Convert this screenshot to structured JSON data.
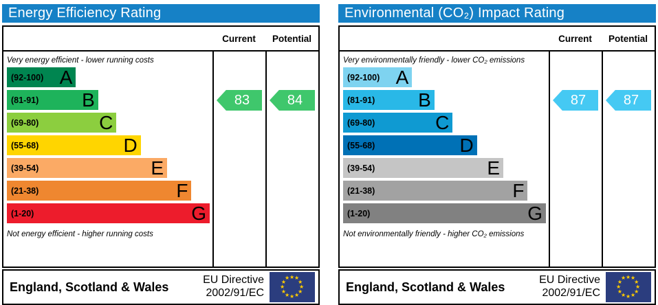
{
  "colors": {
    "header_bg": "#1681c6",
    "flag_bg": "#2b3d7e",
    "flag_star": "#ffcc00"
  },
  "panels": [
    {
      "title": "Energy Efficiency Rating",
      "columns": {
        "current": "Current",
        "potential": "Potential"
      },
      "top_note": "Very energy efficient - lower running costs",
      "bottom_note": "Not energy efficient - higher running costs",
      "bands": [
        {
          "range": "(92-100)",
          "letter": "A",
          "color": "#008550",
          "width_pct": 34
        },
        {
          "range": "(81-91)",
          "letter": "B",
          "color": "#1eb35b",
          "width_pct": 45
        },
        {
          "range": "(69-80)",
          "letter": "C",
          "color": "#8cce3f",
          "width_pct": 54
        },
        {
          "range": "(55-68)",
          "letter": "D",
          "color": "#ffd500",
          "width_pct": 66
        },
        {
          "range": "(39-54)",
          "letter": "E",
          "color": "#fbaa65",
          "width_pct": 79
        },
        {
          "range": "(21-38)",
          "letter": "F",
          "color": "#ef8730",
          "width_pct": 91
        },
        {
          "range": "(1-20)",
          "letter": "G",
          "color": "#ed1c2c",
          "width_pct": 100
        }
      ],
      "current": {
        "value": "83",
        "color": "#3fc76c"
      },
      "potential": {
        "value": "84",
        "color": "#3fc76c"
      },
      "footer": {
        "region": "England, Scotland & Wales",
        "directive_line1": "EU Directive",
        "directive_line2": "2002/91/EC"
      }
    },
    {
      "title": "Environmental (CO₂) Impact Rating",
      "columns": {
        "current": "Current",
        "potential": "Potential"
      },
      "top_note": "Very environmentally friendly - lower CO₂ emissions",
      "bottom_note": "Not environmentally friendly - higher CO₂ emissions",
      "bands": [
        {
          "range": "(92-100)",
          "letter": "A",
          "color": "#7ed3f0",
          "width_pct": 34
        },
        {
          "range": "(81-91)",
          "letter": "B",
          "color": "#29b8e7",
          "width_pct": 45
        },
        {
          "range": "(69-80)",
          "letter": "C",
          "color": "#0f9ad2",
          "width_pct": 54
        },
        {
          "range": "(55-68)",
          "letter": "D",
          "color": "#0071b6",
          "width_pct": 66
        },
        {
          "range": "(39-54)",
          "letter": "E",
          "color": "#c5c5c5",
          "width_pct": 79
        },
        {
          "range": "(21-38)",
          "letter": "F",
          "color": "#a2a2a2",
          "width_pct": 91
        },
        {
          "range": "(1-20)",
          "letter": "G",
          "color": "#818181",
          "width_pct": 100
        }
      ],
      "current": {
        "value": "87",
        "color": "#45c9f3"
      },
      "potential": {
        "value": "87",
        "color": "#45c9f3"
      },
      "footer": {
        "region": "England, Scotland & Wales",
        "directive_line1": "EU Directive",
        "directive_line2": "2002/91/EC"
      }
    }
  ],
  "chart_data": [
    {
      "type": "bar",
      "title": "Energy Efficiency Rating",
      "categories": [
        "A (92-100)",
        "B (81-91)",
        "C (69-80)",
        "D (55-68)",
        "E (39-54)",
        "F (21-38)",
        "G (1-20)"
      ],
      "values": [
        34,
        45,
        54,
        66,
        79,
        91,
        100
      ],
      "value_unit": "relative band width %",
      "current_rating": 83,
      "current_band": "B",
      "potential_rating": 84,
      "potential_band": "B",
      "xlabel": "",
      "ylabel": "",
      "annotations": [
        "Very energy efficient - lower running costs",
        "Not energy efficient - higher running costs",
        "England, Scotland & Wales",
        "EU Directive 2002/91/EC"
      ]
    },
    {
      "type": "bar",
      "title": "Environmental (CO₂) Impact Rating",
      "categories": [
        "A (92-100)",
        "B (81-91)",
        "C (69-80)",
        "D (55-68)",
        "E (39-54)",
        "F (21-38)",
        "G (1-20)"
      ],
      "values": [
        34,
        45,
        54,
        66,
        79,
        91,
        100
      ],
      "value_unit": "relative band width %",
      "current_rating": 87,
      "current_band": "B",
      "potential_rating": 87,
      "potential_band": "B",
      "xlabel": "",
      "ylabel": "",
      "annotations": [
        "Very environmentally friendly - lower CO₂ emissions",
        "Not environmentally friendly - higher CO₂ emissions",
        "England, Scotland & Wales",
        "EU Directive 2002/91/EC"
      ]
    }
  ]
}
